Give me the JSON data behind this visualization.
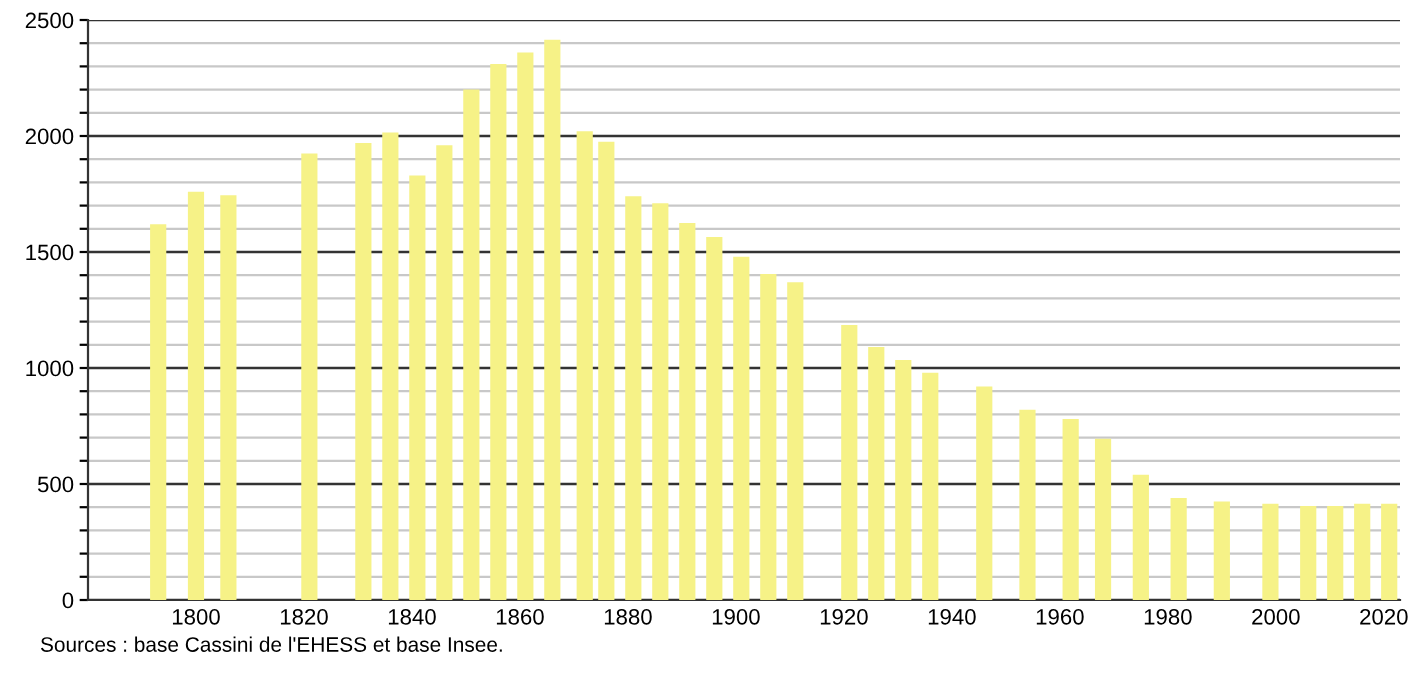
{
  "chart_data": {
    "type": "bar",
    "x": [
      1793,
      1800,
      1806,
      1821,
      1831,
      1836,
      1841,
      1846,
      1851,
      1856,
      1861,
      1866,
      1872,
      1876,
      1881,
      1886,
      1891,
      1896,
      1901,
      1906,
      1911,
      1921,
      1926,
      1931,
      1936,
      1946,
      1954,
      1962,
      1968,
      1975,
      1982,
      1990,
      1999,
      2006,
      2011,
      2016,
      2021
    ],
    "values": [
      1620,
      1760,
      1745,
      1925,
      1970,
      2015,
      1830,
      1960,
      2200,
      2310,
      2360,
      2415,
      2020,
      1975,
      1740,
      1710,
      1625,
      1565,
      1480,
      1405,
      1370,
      1185,
      1090,
      1035,
      980,
      920,
      820,
      780,
      695,
      540,
      440,
      425,
      415,
      405,
      405,
      415,
      415
    ],
    "color": "#f6f287",
    "xlim": [
      1780,
      2023
    ],
    "xticks": [
      1800,
      1820,
      1840,
      1860,
      1880,
      1900,
      1920,
      1940,
      1960,
      1980,
      2000,
      2020
    ],
    "ylim": [
      0,
      2500
    ],
    "yticks": [
      0,
      {
        "value": 100,
        "label": null
      },
      {
        "value": 200,
        "label": null
      },
      {
        "value": 300,
        "label": null
      },
      {
        "value": 400,
        "label": null
      },
      500,
      {
        "value": 600,
        "label": null
      },
      {
        "value": 700,
        "label": null
      },
      {
        "value": 800,
        "label": null
      },
      {
        "value": 900,
        "label": null
      },
      1000,
      {
        "value": 1100,
        "label": null
      },
      {
        "value": 1200,
        "label": null
      },
      {
        "value": 1300,
        "label": null
      },
      {
        "value": 1400,
        "label": null
      },
      1500,
      {
        "value": 1600,
        "label": null
      },
      {
        "value": 1700,
        "label": null
      },
      {
        "value": 1800,
        "label": null
      },
      {
        "value": 1900,
        "label": null
      },
      2000,
      {
        "value": 2100,
        "label": null
      },
      {
        "value": 2200,
        "label": null
      },
      {
        "value": 2300,
        "label": null
      },
      {
        "value": 2400,
        "label": null
      },
      2500
    ],
    "grid": "y",
    "annotations": [
      "Sources : base Cassini de l'EHESS et base Insee."
    ]
  }
}
